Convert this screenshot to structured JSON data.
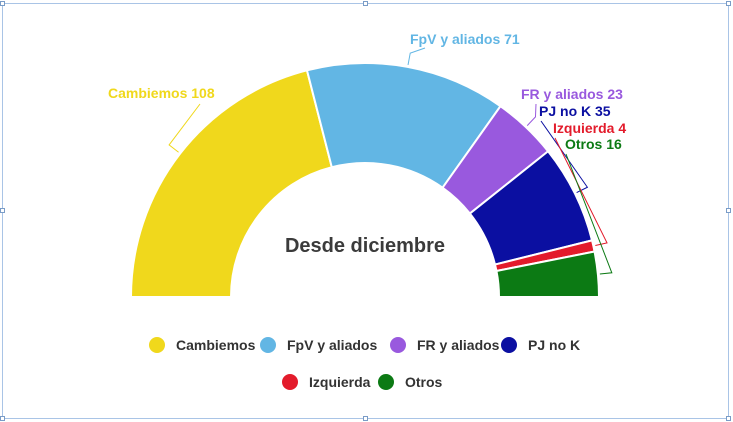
{
  "chart_data": {
    "type": "pie",
    "subtype": "parliament-half-donut",
    "center_label": "Desde diciembre",
    "label_format": "{name} {value}",
    "series": [
      {
        "name": "Cambiemos",
        "value": 108,
        "color": "#f0d81c"
      },
      {
        "name": "FpV y aliados",
        "value": 71,
        "color": "#62b6e4"
      },
      {
        "name": "FR y aliados",
        "value": 23,
        "color": "#9959de"
      },
      {
        "name": "PJ no K",
        "value": 35,
        "color": "#0b0fa1"
      },
      {
        "name": "Izquierda",
        "value": 4,
        "color": "#e31b2b"
      },
      {
        "name": "Otros",
        "value": 16,
        "color": "#0c7a14"
      }
    ],
    "legend": {
      "placement": "bottom",
      "marker": "circle"
    }
  }
}
